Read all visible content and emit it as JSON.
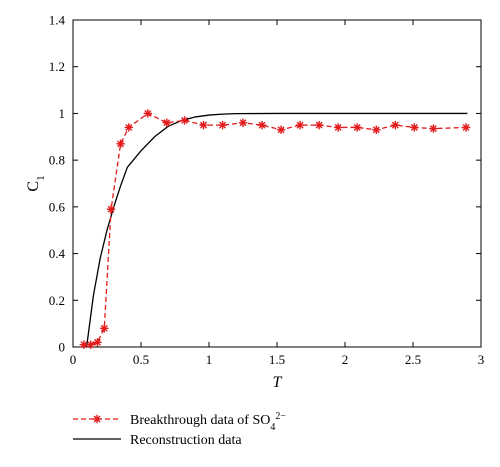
{
  "chart_data": {
    "type": "line",
    "title": "",
    "xlabel": "T",
    "ylabel": "C1",
    "ylabel_main": "C",
    "ylabel_sub": "1",
    "xlim": [
      0,
      3
    ],
    "ylim": [
      0,
      1.4
    ],
    "xticks": [
      0,
      0.5,
      1,
      1.5,
      2,
      2.5,
      3
    ],
    "xtick_labels": [
      "0",
      "0.5",
      "1",
      "1.5",
      "2",
      "2.5",
      "3"
    ],
    "yticks": [
      0,
      0.2,
      0.4,
      0.6,
      0.8,
      1,
      1.2,
      1.4
    ],
    "ytick_labels": [
      "0",
      "0.2",
      "0.4",
      "0.6",
      "0.8",
      "1",
      "1.2",
      "1.4"
    ],
    "grid": false,
    "legend_position": "bottom-left outside",
    "series": [
      {
        "name": "Breakthrough data of SO42−",
        "legend": {
          "main": "Breakthrough data of SO",
          "sub": "4",
          "sup": "2−"
        },
        "color": "#e31a1c",
        "line_style": "dashed",
        "marker": "asterisk",
        "x": [
          0.08,
          0.13,
          0.18,
          0.23,
          0.28,
          0.35,
          0.41,
          0.55,
          0.69,
          0.82,
          0.96,
          1.1,
          1.25,
          1.39,
          1.53,
          1.67,
          1.81,
          1.95,
          2.09,
          2.23,
          2.37,
          2.51,
          2.65,
          2.89
        ],
        "y": [
          0.01,
          0.01,
          0.02,
          0.08,
          0.59,
          0.87,
          0.94,
          1.0,
          0.96,
          0.97,
          0.95,
          0.95,
          0.96,
          0.95,
          0.93,
          0.95,
          0.95,
          0.94,
          0.94,
          0.93,
          0.95,
          0.94,
          0.935,
          0.94
        ]
      },
      {
        "name": "Reconstruction data",
        "legend": {
          "main": "Reconstruction data",
          "sub": "",
          "sup": ""
        },
        "color": "#000000",
        "line_style": "solid",
        "marker": "none",
        "x": [
          0.1,
          0.15,
          0.2,
          0.25,
          0.3,
          0.35,
          0.4,
          0.5,
          0.6,
          0.7,
          0.8,
          0.9,
          1.0,
          1.1,
          1.2,
          1.5,
          2.0,
          2.5,
          2.9
        ],
        "y": [
          0.0,
          0.22,
          0.38,
          0.5,
          0.6,
          0.69,
          0.77,
          0.84,
          0.9,
          0.945,
          0.97,
          0.985,
          0.993,
          0.997,
          0.999,
          1.0,
          1.0,
          1.0,
          1.0
        ]
      }
    ]
  }
}
